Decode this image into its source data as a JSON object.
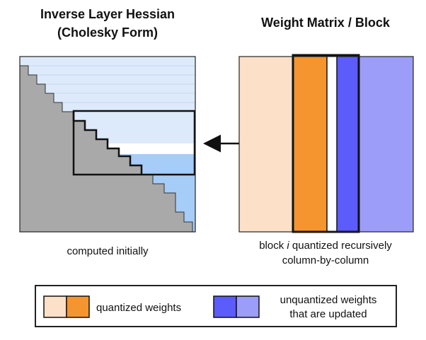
{
  "left_panel": {
    "title_line1": "Inverse Layer Hessian",
    "title_line2": "(Cholesky Form)",
    "caption": "computed initially"
  },
  "right_panel": {
    "title": "Weight Matrix / Block",
    "caption_prefix": "block ",
    "caption_italic": "i",
    "caption_suffix": " quantized recursively",
    "caption_line2": "column-by-column"
  },
  "legend": {
    "quantized_label": "quantized weights",
    "unquantized_label_line1": "unquantized weights",
    "unquantized_label_line2": "that are updated"
  },
  "colors": {
    "light_blue": "#ddeafb",
    "mid_blue": "#a6ccf8",
    "grey": "#a9a9a9",
    "peach": "#fce0c7",
    "orange": "#f5952f",
    "blue": "#5c5cfb",
    "lavender": "#9c9cf9",
    "stroke": "#111111"
  }
}
